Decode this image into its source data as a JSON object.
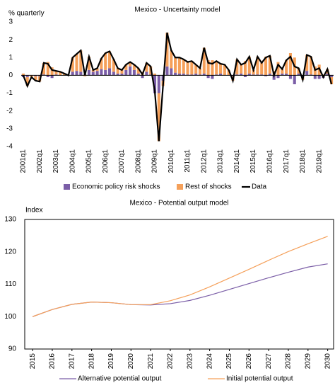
{
  "chart_data": [
    {
      "type": "bar",
      "title": "Mexico - Uncertainty model",
      "y_label": "% quarterly",
      "categories": [
        "2001q1",
        null,
        null,
        null,
        "2002q1",
        null,
        null,
        null,
        "2003q1",
        null,
        null,
        null,
        "2004q1",
        null,
        null,
        null,
        "2005q1",
        null,
        null,
        null,
        "2006q1",
        null,
        null,
        null,
        "2007q1",
        null,
        null,
        null,
        "2008q1",
        null,
        null,
        null,
        "2009q1",
        null,
        null,
        null,
        "2010q1",
        null,
        null,
        null,
        "2011q1",
        null,
        null,
        null,
        "2012q1",
        null,
        null,
        null,
        "2013q1",
        null,
        null,
        null,
        "2014q1",
        null,
        null,
        null,
        "2015q1",
        null,
        null,
        null,
        "2016q1",
        null,
        null,
        null,
        "2017q1",
        null,
        null,
        null,
        "2018q1",
        null,
        null,
        null,
        "2019q1",
        null,
        null,
        null
      ],
      "series": [
        {
          "name": "Economic policy risk shocks",
          "color": "#7b5ea7",
          "values": [
            -0.1,
            -0.1,
            0,
            -0.05,
            -0.05,
            0.05,
            -0.1,
            -0.15,
            0.05,
            0,
            0,
            0,
            0.2,
            0.25,
            0.2,
            0.05,
            0.3,
            0.2,
            0.25,
            0.35,
            0.3,
            0.4,
            0.2,
            0.1,
            0.1,
            0.3,
            0.5,
            0.3,
            0.1,
            -0.15,
            0.2,
            0.05,
            -1.0,
            -1.0,
            -0.3,
            0.5,
            0.4,
            0.15,
            0.1,
            0.1,
            0.05,
            0.05,
            0.1,
            0.05,
            0.1,
            -0.15,
            -0.2,
            0.05,
            0.1,
            0,
            0,
            -0.05,
            0.05,
            0.1,
            -0.1,
            0.1,
            0.05,
            0.05,
            0.05,
            -0.05,
            0.1,
            -0.25,
            -0.15,
            0.1,
            0.1,
            -0.2,
            -0.5,
            0.1,
            -0.1,
            0.25,
            0.05,
            -0.2,
            -0.2,
            -0.15,
            0.1,
            -0.1
          ]
        },
        {
          "name": "Rest of shocks",
          "color": "#f5a05a",
          "values": [
            0.1,
            -0.5,
            -0.1,
            -0.25,
            -0.3,
            0.65,
            0.75,
            0.45,
            0.2,
            0.2,
            0.1,
            0.0,
            0.8,
            0.95,
            1.2,
            -0.05,
            0.75,
            0.1,
            0.15,
            0.6,
            0.95,
            0.95,
            0.7,
            0.3,
            0.2,
            0.3,
            0.25,
            0.3,
            0.3,
            0.2,
            0.5,
            0.45,
            0.1,
            -2.7,
            -0.3,
            1.9,
            1.0,
            0.85,
            0.9,
            0.8,
            0.7,
            0.75,
            0.5,
            0.35,
            1.45,
            0.85,
            0.85,
            0.75,
            0.55,
            0.6,
            0.3,
            -0.25,
            0.85,
            0.5,
            0.8,
            0.95,
            0.25,
            1.0,
            0.65,
            1.05,
            1.0,
            0.25,
            0.75,
            0.25,
            0.75,
            1.25,
            1.0,
            0.3,
            -0.15,
            0.9,
            1.0,
            0.5,
            0.6,
            0.05,
            0.25,
            -0.4
          ]
        },
        {
          "name": "Data",
          "color": "#000000",
          "type": "line",
          "values": [
            0.0,
            -0.6,
            -0.1,
            -0.3,
            -0.35,
            0.7,
            0.65,
            0.3,
            0.25,
            0.2,
            0.1,
            0.0,
            1.0,
            1.2,
            1.4,
            0.0,
            1.05,
            0.3,
            0.4,
            0.95,
            1.25,
            1.35,
            0.9,
            0.4,
            0.3,
            0.6,
            0.75,
            0.6,
            0.4,
            0.05,
            0.7,
            0.5,
            -0.9,
            -3.7,
            -0.6,
            2.4,
            1.4,
            1.0,
            1.0,
            0.9,
            0.75,
            0.8,
            0.6,
            0.4,
            1.55,
            0.7,
            0.65,
            0.8,
            0.65,
            0.6,
            0.3,
            -0.3,
            0.9,
            0.6,
            0.7,
            1.05,
            0.3,
            1.05,
            0.7,
            1.0,
            1.1,
            0.0,
            0.6,
            0.35,
            0.85,
            1.05,
            0.5,
            0.4,
            -0.25,
            1.15,
            1.05,
            0.3,
            0.4,
            -0.1,
            0.35,
            -0.5
          ]
        }
      ],
      "ylim": [
        -4,
        3
      ],
      "yticks": [
        -4,
        -3,
        -2,
        -1,
        0,
        1,
        2,
        3
      ],
      "grid": false,
      "legend": "bottom"
    },
    {
      "type": "line",
      "title": "Mexico - Potential output model",
      "y_label": "Index",
      "x": [
        2015,
        2016,
        2017,
        2018,
        2019,
        2020,
        2021,
        2022,
        2023,
        2024,
        2025,
        2026,
        2027,
        2028,
        2029,
        2030
      ],
      "series": [
        {
          "name": "Alternative potential output",
          "color": "#7b5ea7",
          "values": [
            100,
            102.2,
            103.8,
            104.5,
            104.3,
            103.7,
            103.6,
            104.0,
            105.0,
            106.6,
            108.4,
            110.2,
            112.0,
            113.7,
            115.3,
            116.3
          ]
        },
        {
          "name": "Initial potential output",
          "color": "#f5a05a",
          "values": [
            100,
            102.2,
            103.8,
            104.5,
            104.3,
            103.7,
            103.7,
            104.9,
            106.7,
            109.2,
            111.9,
            114.6,
            117.4,
            120.1,
            122.5,
            124.8
          ]
        }
      ],
      "xlim": [
        2014.6,
        2030.3
      ],
      "xticks": [
        2015,
        2016,
        2017,
        2018,
        2019,
        2020,
        2021,
        2022,
        2023,
        2024,
        2025,
        2026,
        2027,
        2028,
        2029,
        2030
      ],
      "ylim": [
        90,
        130
      ],
      "yticks": [
        90,
        100,
        110,
        120,
        130
      ],
      "grid": false,
      "legend": "bottom"
    }
  ]
}
